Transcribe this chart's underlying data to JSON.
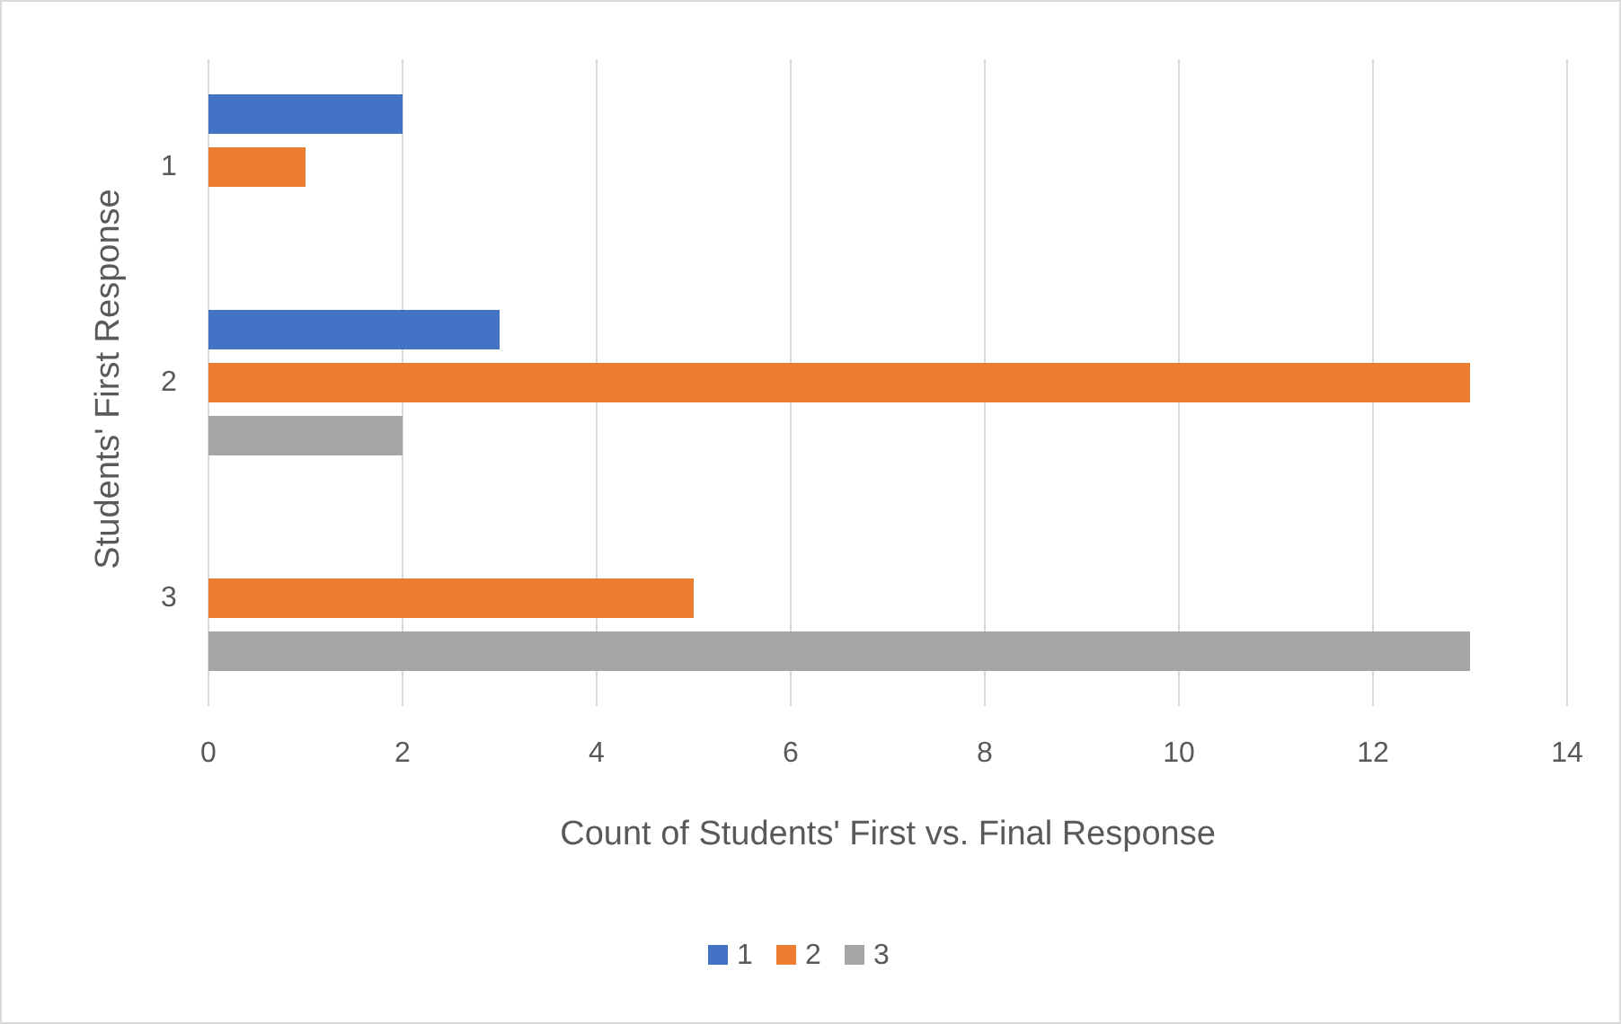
{
  "chart_data": {
    "type": "bar",
    "orientation": "horizontal",
    "xlabel": "Count of Students' First vs. Final Response",
    "ylabel": "Students' First Response",
    "categories": [
      "1",
      "2",
      "3"
    ],
    "series": [
      {
        "name": "1",
        "color": "#4472c4",
        "values": [
          2,
          3,
          null
        ]
      },
      {
        "name": "2",
        "color": "#ed7d31",
        "values": [
          1,
          13,
          5
        ]
      },
      {
        "name": "3",
        "color": "#a5a5a5",
        "values": [
          null,
          2,
          13
        ]
      }
    ],
    "xlim": [
      0,
      14
    ],
    "xticks": [
      0,
      2,
      4,
      6,
      8,
      10,
      12,
      14
    ],
    "grid": "x",
    "legend": "bottom"
  }
}
